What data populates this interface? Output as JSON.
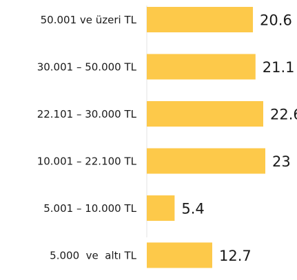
{
  "chart_data": {
    "type": "bar",
    "orientation": "horizontal",
    "categories": [
      "50.001 ve üzeri TL",
      "30.001 – 50.000 TL",
      "22.101 – 30.000 TL",
      "10.001 – 22.100 TL",
      "5.001 – 10.000 TL",
      "5.000  ve  altı TL"
    ],
    "values": [
      20.6,
      21.1,
      22.6,
      23,
      5.4,
      12.7
    ],
    "color": "#fdc94a"
  }
}
